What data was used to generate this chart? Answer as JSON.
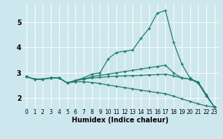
{
  "xlabel": "Humidex (Indice chaleur)",
  "bg_color": "#cce8ee",
  "grid_color": "#ffffff",
  "line_color": "#1a7a6e",
  "marker": "+",
  "xlim": [
    -0.5,
    23.5
  ],
  "ylim": [
    1.6,
    5.7
  ],
  "xticks": [
    0,
    1,
    2,
    3,
    4,
    5,
    6,
    7,
    8,
    9,
    10,
    11,
    12,
    13,
    14,
    15,
    16,
    17,
    18,
    19,
    20,
    21,
    22,
    23
  ],
  "yticks": [
    2,
    3,
    4,
    5
  ],
  "lines": [
    [
      2.85,
      2.75,
      2.75,
      2.8,
      2.8,
      2.6,
      2.7,
      2.8,
      2.95,
      3.0,
      3.55,
      3.8,
      3.85,
      3.9,
      4.35,
      4.75,
      5.35,
      5.45,
      4.2,
      3.35,
      2.8,
      2.6,
      2.1,
      1.65
    ],
    [
      2.85,
      2.75,
      2.75,
      2.8,
      2.8,
      2.6,
      2.7,
      2.75,
      2.85,
      2.9,
      2.95,
      3.0,
      3.05,
      3.1,
      3.15,
      3.2,
      3.25,
      3.3,
      3.0,
      2.8,
      2.75,
      2.65,
      2.15,
      1.65
    ],
    [
      2.85,
      2.75,
      2.75,
      2.8,
      2.8,
      2.6,
      2.7,
      2.75,
      2.8,
      2.82,
      2.85,
      2.87,
      2.88,
      2.89,
      2.9,
      2.92,
      2.93,
      2.95,
      2.88,
      2.8,
      2.75,
      2.6,
      2.1,
      1.65
    ],
    [
      2.85,
      2.75,
      2.75,
      2.8,
      2.8,
      2.6,
      2.65,
      2.65,
      2.62,
      2.58,
      2.52,
      2.47,
      2.42,
      2.37,
      2.32,
      2.27,
      2.22,
      2.18,
      2.08,
      1.98,
      1.88,
      1.78,
      1.7,
      1.65
    ]
  ],
  "xlabel_fontsize": 7,
  "tick_fontsize": 5.5,
  "ytick_fontsize": 7
}
